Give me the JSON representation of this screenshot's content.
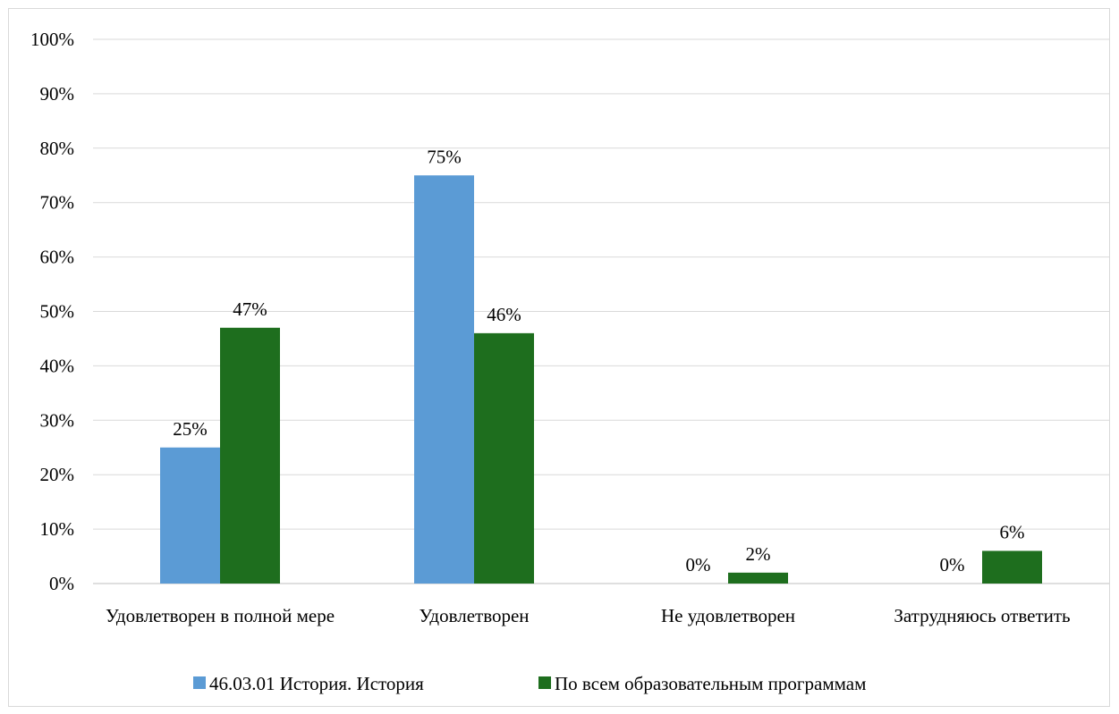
{
  "chart_data": {
    "type": "bar",
    "categories": [
      "Удовлетворен в полной мере",
      "Удовлетворен",
      "Не удовлетворен",
      "Затрудняюсь ответить"
    ],
    "series": [
      {
        "name": "46.03.01 История. История",
        "values": [
          25,
          75,
          0,
          0
        ],
        "labels": [
          "25%",
          "75%",
          "0%",
          "0%"
        ],
        "color": "#5b9bd5"
      },
      {
        "name": "По всем образовательным программам",
        "values": [
          47,
          46,
          2,
          6
        ],
        "labels": [
          "47%",
          "46%",
          "2%",
          "6%"
        ],
        "color": "#1e6e1e"
      }
    ],
    "ylim": [
      0,
      100
    ],
    "y_ticks": [
      "0%",
      "10%",
      "20%",
      "30%",
      "40%",
      "50%",
      "60%",
      "70%",
      "80%",
      "90%",
      "100%"
    ],
    "grid": true,
    "legend_position": "bottom",
    "gridline_color": "#d9d9d9"
  }
}
